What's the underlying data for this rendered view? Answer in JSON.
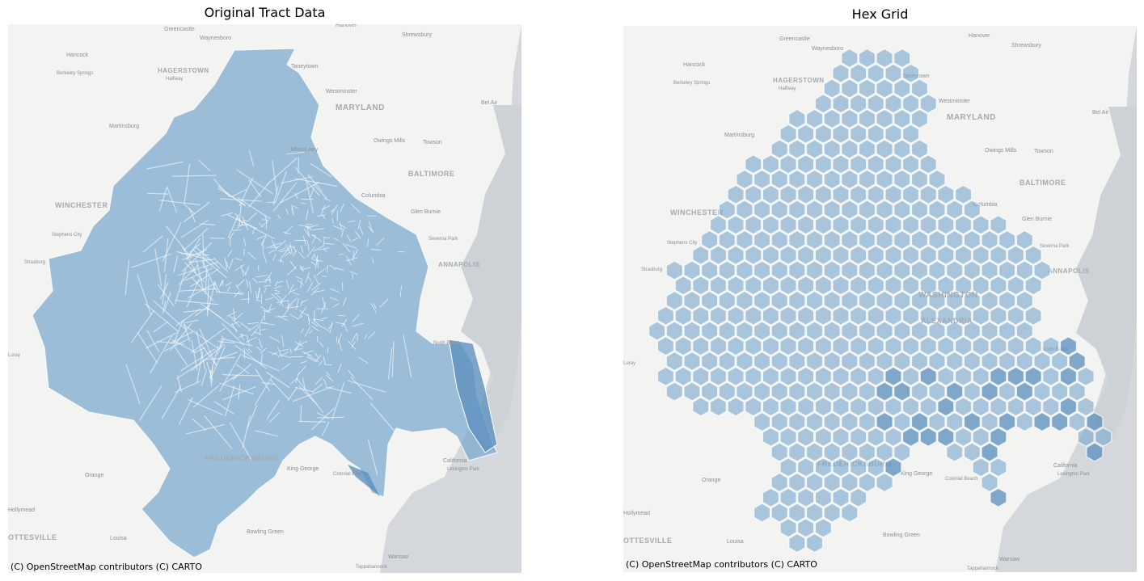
{
  "colors": {
    "fill": "#7aa8cf",
    "edge": "#ffffff",
    "water": "#d4d8dc",
    "land": "#f3f3f1"
  },
  "left_panel": {
    "title": "Original Tract Data",
    "attribution": "(C) OpenStreetMap contributors (C) CARTO"
  },
  "right_panel": {
    "title": "Hex Grid",
    "attribution": "(C) OpenStreetMap contributors (C) CARTO"
  },
  "place_labels": {
    "greencastle": "Greencastle",
    "waynesboro": "Waynesboro",
    "hanover": "Hanover",
    "shrewsbury": "Shrewsbury",
    "hancock": "Hancock",
    "hagerstown": "HAGERSTOWN",
    "halfway": "Halfway",
    "taneytown": "Taneytown",
    "berkeley_springs": "Berkeley Springs",
    "westminster": "Westminster",
    "maryland": "MARYLAND",
    "bel_air": "Bel Air",
    "martinsburg": "Martinsburg",
    "owings_mills": "Owings Mills",
    "towson": "Towson",
    "mount_airy": "Mount Airy",
    "baltimore": "BALTIMORE",
    "winchester": "WINCHESTER",
    "columbia": "Columbia",
    "glen_burnie": "Glen Burnie",
    "stephens_city": "Stephens City",
    "severna_park": "Severna Park",
    "annapolis": "ANNAPOLIS",
    "strasburg": "Strasburg",
    "luray": "Luray",
    "washington": "WASHINGTON",
    "alexandria": "ALEXANDRIA",
    "north_beach": "North Beach",
    "fredericksburg": "FREDERICKSBURG",
    "king_george": "King George",
    "orange": "Orange",
    "colonial_beach": "Colonial Beach",
    "california": "California",
    "lexington_park": "Lexington Park",
    "hollymead": "Hollymead",
    "charlottesville": "OTTESVILLE",
    "louisa": "Louisa",
    "bowling_green": "Bowling Green",
    "warsaw": "Warsaw",
    "tappahannock": "Tappahannock"
  }
}
